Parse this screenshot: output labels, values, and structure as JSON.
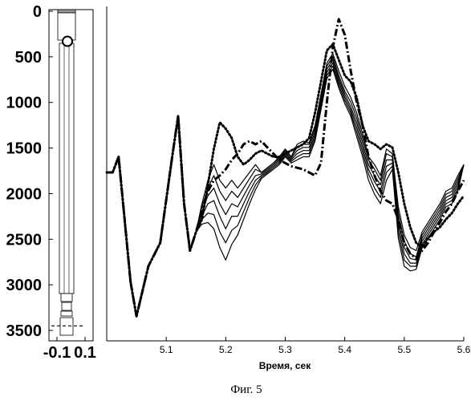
{
  "caption": "Фиг. 5",
  "chart_data": [
    {
      "type": "diagram",
      "name": "well-schematic",
      "ylim": [
        3500,
        0
      ],
      "xlim": [
        -0.1,
        0.1
      ],
      "y_ticks": [
        "0",
        "500",
        "1000",
        "1500",
        "2000",
        "2500",
        "3000",
        "3500"
      ],
      "x_ticks": [
        "-0.1",
        "0.1"
      ],
      "y_tick_values": [
        0,
        500,
        1000,
        1500,
        2000,
        2500,
        3000,
        3500
      ],
      "x_tick_values": [
        -0.1,
        0.1
      ],
      "marker_depth": 330,
      "dashed_depth": 3450
    },
    {
      "type": "line",
      "xlabel": "Время, сек",
      "xlim": [
        5.0,
        5.6
      ],
      "x_ticks": [
        "5.1",
        "5.2",
        "5.3",
        "5.4",
        "5.5",
        "5.6"
      ],
      "x_tick_values": [
        5.1,
        5.2,
        5.3,
        5.4,
        5.5,
        5.6
      ],
      "ylim": [
        -1,
        1
      ],
      "series": [
        {
          "style": "solid",
          "x": [
            5.0,
            5.01,
            5.02,
            5.03,
            5.04,
            5.05,
            5.07,
            5.09,
            5.11,
            5.12,
            5.13,
            5.14,
            5.15,
            5.16,
            5.17,
            5.18,
            5.19,
            5.2,
            5.21,
            5.22,
            5.23,
            5.24,
            5.25,
            5.26,
            5.27,
            5.28,
            5.29,
            5.3,
            5.31,
            5.32,
            5.33,
            5.34,
            5.35,
            5.36,
            5.37,
            5.38,
            5.39,
            5.4,
            5.41,
            5.42,
            5.43,
            5.44,
            5.45,
            5.46,
            5.47,
            5.48,
            5.49,
            5.5,
            5.51,
            5.52,
            5.53,
            5.54,
            5.55,
            5.56,
            5.57,
            5.58,
            5.59,
            5.6
          ],
          "y": [
            0.0,
            0.0,
            0.1,
            -0.3,
            -0.7,
            -0.92,
            -0.6,
            -0.45,
            0.1,
            0.36,
            -0.2,
            -0.5,
            -0.38,
            -0.2,
            -0.05,
            0.05,
            -0.05,
            -0.1,
            -0.05,
            -0.1,
            -0.05,
            0.0,
            0.05,
            0.0,
            0.03,
            0.06,
            0.1,
            0.15,
            0.1,
            0.18,
            0.2,
            0.19,
            0.3,
            0.5,
            0.7,
            0.76,
            0.65,
            0.55,
            0.48,
            0.38,
            0.25,
            0.1,
            0.05,
            -0.02,
            0.15,
            0.12,
            -0.22,
            -0.4,
            -0.48,
            -0.5,
            -0.38,
            -0.32,
            -0.26,
            -0.2,
            -0.12,
            -0.1,
            -0.02,
            0.05
          ]
        },
        {
          "style": "solid",
          "x": [
            5.0,
            5.01,
            5.02,
            5.03,
            5.04,
            5.05,
            5.07,
            5.09,
            5.11,
            5.12,
            5.13,
            5.14,
            5.15,
            5.16,
            5.17,
            5.18,
            5.19,
            5.2,
            5.21,
            5.22,
            5.23,
            5.24,
            5.25,
            5.26,
            5.27,
            5.28,
            5.29,
            5.3,
            5.31,
            5.32,
            5.33,
            5.34,
            5.35,
            5.36,
            5.37,
            5.38,
            5.39,
            5.4,
            5.41,
            5.42,
            5.43,
            5.44,
            5.45,
            5.46,
            5.47,
            5.48,
            5.49,
            5.5,
            5.51,
            5.52,
            5.53,
            5.54,
            5.55,
            5.56,
            5.57,
            5.58,
            5.59,
            5.6
          ],
          "y": [
            0.0,
            0.0,
            0.1,
            -0.3,
            -0.7,
            -0.92,
            -0.6,
            -0.45,
            0.1,
            0.36,
            -0.2,
            -0.5,
            -0.38,
            -0.22,
            -0.1,
            -0.02,
            -0.12,
            -0.18,
            -0.12,
            -0.16,
            -0.1,
            -0.04,
            0.02,
            0.0,
            0.03,
            0.06,
            0.09,
            0.14,
            0.1,
            0.16,
            0.18,
            0.18,
            0.28,
            0.48,
            0.68,
            0.74,
            0.62,
            0.52,
            0.45,
            0.35,
            0.22,
            0.08,
            0.02,
            -0.05,
            0.12,
            0.1,
            -0.26,
            -0.44,
            -0.52,
            -0.54,
            -0.4,
            -0.34,
            -0.28,
            -0.22,
            -0.14,
            -0.12,
            -0.04,
            0.05
          ]
        },
        {
          "style": "solid",
          "x": [
            5.0,
            5.01,
            5.02,
            5.03,
            5.04,
            5.05,
            5.07,
            5.09,
            5.11,
            5.12,
            5.13,
            5.14,
            5.15,
            5.16,
            5.17,
            5.18,
            5.19,
            5.2,
            5.21,
            5.22,
            5.23,
            5.24,
            5.25,
            5.26,
            5.27,
            5.28,
            5.29,
            5.3,
            5.31,
            5.32,
            5.33,
            5.34,
            5.35,
            5.36,
            5.37,
            5.38,
            5.39,
            5.4,
            5.41,
            5.42,
            5.43,
            5.44,
            5.45,
            5.46,
            5.47,
            5.48,
            5.49,
            5.5,
            5.51,
            5.52,
            5.53,
            5.54,
            5.55,
            5.56,
            5.57,
            5.58,
            5.59,
            5.6
          ],
          "y": [
            0.0,
            0.0,
            0.1,
            -0.3,
            -0.7,
            -0.92,
            -0.6,
            -0.45,
            0.1,
            0.36,
            -0.2,
            -0.5,
            -0.38,
            -0.25,
            -0.15,
            -0.1,
            -0.2,
            -0.27,
            -0.2,
            -0.22,
            -0.15,
            -0.08,
            -0.02,
            -0.01,
            0.02,
            0.05,
            0.08,
            0.13,
            0.09,
            0.14,
            0.16,
            0.16,
            0.26,
            0.46,
            0.66,
            0.72,
            0.6,
            0.5,
            0.42,
            0.32,
            0.19,
            0.05,
            -0.02,
            -0.08,
            0.08,
            0.08,
            -0.3,
            -0.48,
            -0.55,
            -0.56,
            -0.42,
            -0.36,
            -0.3,
            -0.24,
            -0.16,
            -0.14,
            -0.06,
            0.05
          ]
        },
        {
          "style": "solid",
          "x": [
            5.0,
            5.01,
            5.02,
            5.03,
            5.04,
            5.05,
            5.07,
            5.09,
            5.11,
            5.12,
            5.13,
            5.14,
            5.15,
            5.16,
            5.17,
            5.18,
            5.19,
            5.2,
            5.21,
            5.22,
            5.23,
            5.24,
            5.25,
            5.26,
            5.27,
            5.28,
            5.29,
            5.3,
            5.31,
            5.32,
            5.33,
            5.34,
            5.35,
            5.36,
            5.37,
            5.38,
            5.39,
            5.4,
            5.41,
            5.42,
            5.43,
            5.44,
            5.45,
            5.46,
            5.47,
            5.48,
            5.49,
            5.5,
            5.51,
            5.52,
            5.53,
            5.54,
            5.55,
            5.56,
            5.57,
            5.58,
            5.59,
            5.6
          ],
          "y": [
            0.0,
            0.0,
            0.1,
            -0.3,
            -0.7,
            -0.92,
            -0.6,
            -0.45,
            0.1,
            0.36,
            -0.2,
            -0.5,
            -0.38,
            -0.28,
            -0.2,
            -0.18,
            -0.28,
            -0.36,
            -0.28,
            -0.28,
            -0.2,
            -0.12,
            -0.05,
            -0.02,
            0.01,
            0.04,
            0.07,
            0.12,
            0.08,
            0.12,
            0.14,
            0.14,
            0.24,
            0.44,
            0.64,
            0.7,
            0.58,
            0.48,
            0.4,
            0.29,
            0.16,
            0.02,
            -0.06,
            -0.12,
            0.04,
            0.06,
            -0.34,
            -0.52,
            -0.58,
            -0.58,
            -0.44,
            -0.38,
            -0.32,
            -0.26,
            -0.18,
            -0.16,
            -0.08,
            0.05
          ]
        },
        {
          "style": "solid",
          "x": [
            5.0,
            5.01,
            5.02,
            5.03,
            5.04,
            5.05,
            5.07,
            5.09,
            5.11,
            5.12,
            5.13,
            5.14,
            5.15,
            5.16,
            5.17,
            5.18,
            5.19,
            5.2,
            5.21,
            5.22,
            5.23,
            5.24,
            5.25,
            5.26,
            5.27,
            5.28,
            5.29,
            5.3,
            5.31,
            5.32,
            5.33,
            5.34,
            5.35,
            5.36,
            5.37,
            5.38,
            5.39,
            5.4,
            5.41,
            5.42,
            5.43,
            5.44,
            5.45,
            5.46,
            5.47,
            5.48,
            5.49,
            5.5,
            5.51,
            5.52,
            5.53,
            5.54,
            5.55,
            5.56,
            5.57,
            5.58,
            5.59,
            5.6
          ],
          "y": [
            0.0,
            0.0,
            0.1,
            -0.3,
            -0.7,
            -0.92,
            -0.6,
            -0.45,
            0.1,
            0.36,
            -0.2,
            -0.5,
            -0.38,
            -0.3,
            -0.26,
            -0.27,
            -0.38,
            -0.45,
            -0.37,
            -0.34,
            -0.25,
            -0.16,
            -0.08,
            -0.03,
            0.0,
            0.03,
            0.06,
            0.11,
            0.07,
            0.1,
            0.12,
            0.12,
            0.22,
            0.42,
            0.62,
            0.68,
            0.56,
            0.46,
            0.38,
            0.26,
            0.13,
            -0.01,
            -0.1,
            -0.16,
            0.0,
            0.04,
            -0.38,
            -0.56,
            -0.6,
            -0.6,
            -0.46,
            -0.4,
            -0.34,
            -0.28,
            -0.2,
            -0.18,
            -0.1,
            0.05
          ]
        },
        {
          "style": "solid",
          "x": [
            5.0,
            5.01,
            5.02,
            5.03,
            5.04,
            5.05,
            5.07,
            5.09,
            5.11,
            5.12,
            5.13,
            5.14,
            5.15,
            5.16,
            5.17,
            5.18,
            5.19,
            5.2,
            5.21,
            5.22,
            5.23,
            5.24,
            5.25,
            5.26,
            5.27,
            5.28,
            5.29,
            5.3,
            5.31,
            5.32,
            5.33,
            5.34,
            5.35,
            5.36,
            5.37,
            5.38,
            5.39,
            5.4,
            5.41,
            5.42,
            5.43,
            5.44,
            5.45,
            5.46,
            5.47,
            5.48,
            5.49,
            5.5,
            5.51,
            5.52,
            5.53,
            5.54,
            5.55,
            5.56,
            5.57,
            5.58,
            5.59,
            5.6
          ],
          "y": [
            0.0,
            0.0,
            0.1,
            -0.3,
            -0.7,
            -0.92,
            -0.6,
            -0.45,
            0.1,
            0.36,
            -0.2,
            -0.5,
            -0.38,
            -0.33,
            -0.32,
            -0.36,
            -0.48,
            -0.56,
            -0.46,
            -0.4,
            -0.3,
            -0.2,
            -0.11,
            -0.04,
            -0.01,
            0.02,
            0.05,
            0.1,
            0.06,
            0.08,
            0.1,
            0.1,
            0.2,
            0.4,
            0.6,
            0.66,
            0.54,
            0.44,
            0.36,
            0.23,
            0.1,
            -0.05,
            -0.14,
            -0.2,
            -0.05,
            0.02,
            -0.42,
            -0.6,
            -0.63,
            -0.62,
            -0.48,
            -0.42,
            -0.36,
            -0.3,
            -0.22,
            -0.2,
            -0.12,
            0.05
          ]
        },
        {
          "style": "dotted",
          "x": [
            5.0,
            5.01,
            5.02,
            5.03,
            5.04,
            5.05,
            5.07,
            5.09,
            5.11,
            5.12,
            5.13,
            5.14,
            5.15,
            5.16,
            5.17,
            5.18,
            5.19,
            5.2,
            5.21,
            5.22,
            5.23,
            5.24,
            5.25,
            5.26,
            5.27,
            5.28,
            5.29,
            5.3,
            5.31,
            5.32,
            5.33,
            5.34,
            5.35,
            5.36,
            5.37,
            5.38,
            5.39,
            5.4,
            5.41,
            5.42,
            5.43,
            5.44,
            5.45,
            5.46,
            5.47,
            5.48,
            5.49,
            5.5,
            5.51,
            5.52,
            5.53,
            5.54,
            5.55,
            5.56,
            5.57,
            5.58,
            5.59,
            5.6
          ],
          "y": [
            0.0,
            0.0,
            0.1,
            -0.3,
            -0.7,
            -0.92,
            -0.6,
            -0.45,
            0.1,
            0.36,
            -0.2,
            -0.5,
            -0.38,
            -0.3,
            -0.08,
            0.15,
            0.32,
            0.28,
            0.22,
            0.1,
            0.05,
            0.08,
            0.12,
            0.14,
            0.12,
            0.1,
            0.1,
            0.12,
            0.14,
            0.16,
            0.18,
            0.22,
            0.38,
            0.58,
            0.78,
            0.82,
            0.72,
            0.62,
            0.58,
            0.48,
            0.3,
            0.2,
            0.18,
            0.15,
            0.18,
            0.16,
            0.0,
            -0.2,
            -0.35,
            -0.45,
            -0.48,
            -0.42,
            -0.38,
            -0.35,
            -0.3,
            -0.26,
            -0.2,
            -0.15
          ]
        },
        {
          "style": "dashdot",
          "x": [
            5.0,
            5.01,
            5.02,
            5.03,
            5.04,
            5.05,
            5.07,
            5.09,
            5.11,
            5.12,
            5.13,
            5.14,
            5.15,
            5.16,
            5.17,
            5.18,
            5.19,
            5.2,
            5.21,
            5.22,
            5.23,
            5.24,
            5.25,
            5.26,
            5.27,
            5.28,
            5.29,
            5.3,
            5.31,
            5.32,
            5.33,
            5.34,
            5.35,
            5.36,
            5.37,
            5.38,
            5.39,
            5.4,
            5.41,
            5.42,
            5.43,
            5.44,
            5.45,
            5.46,
            5.47,
            5.48,
            5.49,
            5.5,
            5.51,
            5.52,
            5.53,
            5.54,
            5.55,
            5.56,
            5.57,
            5.58,
            5.59,
            5.6
          ],
          "y": [
            0.0,
            0.0,
            0.1,
            -0.3,
            -0.7,
            -0.92,
            -0.6,
            -0.45,
            0.1,
            0.36,
            -0.2,
            -0.5,
            -0.38,
            -0.25,
            -0.12,
            -0.05,
            -0.02,
            0.02,
            0.08,
            0.12,
            0.18,
            0.2,
            0.18,
            0.2,
            0.16,
            0.12,
            0.08,
            0.06,
            0.04,
            0.03,
            0.02,
            0.0,
            -0.02,
            0.06,
            0.45,
            0.8,
            0.98,
            0.88,
            0.65,
            0.45,
            0.3,
            0.1,
            -0.02,
            -0.12,
            -0.18,
            -0.2,
            -0.3,
            -0.45,
            -0.52,
            -0.55,
            -0.5,
            -0.45,
            -0.38,
            -0.32,
            -0.25,
            -0.2,
            -0.12,
            -0.05
          ]
        }
      ]
    }
  ]
}
